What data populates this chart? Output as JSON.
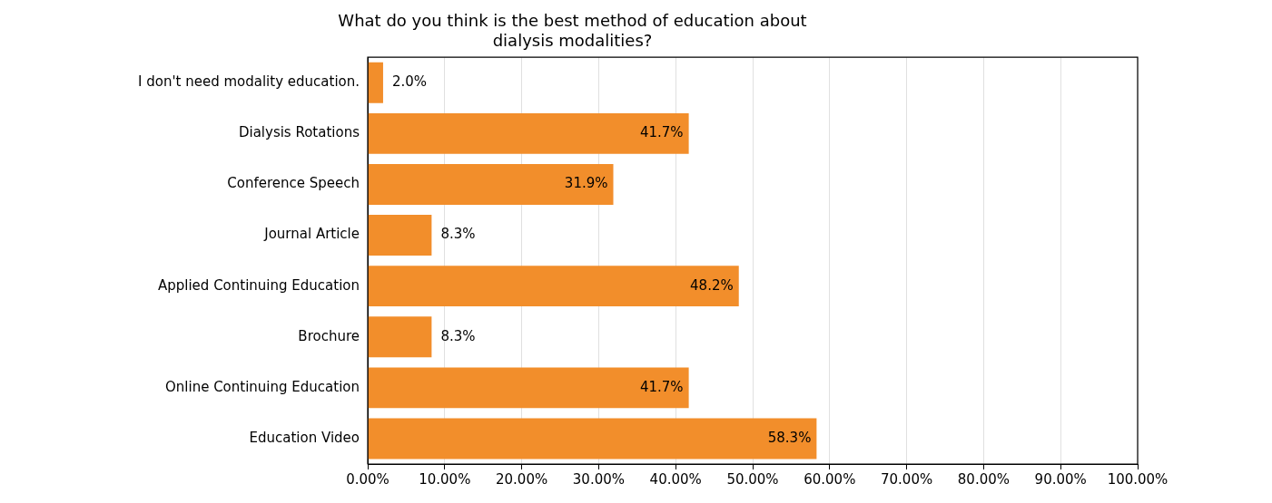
{
  "chart_data": {
    "type": "bar",
    "orientation": "horizontal",
    "title": "What do you think is the best method of education about dialysis modalities?",
    "categories": [
      "I don't need modality education.",
      "Dialysis Rotations",
      "Conference Speech",
      "Journal Article",
      "Applied Continuing Education",
      "Brochure",
      "Online Continuing Education",
      "Education Video"
    ],
    "values": [
      2.0,
      41.7,
      31.9,
      8.3,
      48.2,
      8.3,
      41.7,
      58.3
    ],
    "value_labels": [
      "2.0%",
      "41.7%",
      "31.9%",
      "8.3%",
      "48.2%",
      "8.3%",
      "41.7%",
      "58.3%"
    ],
    "color": "#f28e2b",
    "xlim": [
      0,
      100
    ],
    "xticks": [
      {
        "value": 0,
        "label": "0.00%"
      },
      {
        "value": 10,
        "label": "10.00%"
      },
      {
        "value": 20,
        "label": "20.00%"
      },
      {
        "value": 30,
        "label": "30.00%"
      },
      {
        "value": 40,
        "label": "40.00%"
      },
      {
        "value": 50,
        "label": "50.00%"
      },
      {
        "value": 60,
        "label": "60.00%"
      },
      {
        "value": 70,
        "label": "70.00%"
      },
      {
        "value": 80,
        "label": "80.00%"
      },
      {
        "value": 90,
        "label": "90.00%"
      },
      {
        "value": 100,
        "label": "100.00%"
      }
    ],
    "grid": "x",
    "legend": false
  }
}
